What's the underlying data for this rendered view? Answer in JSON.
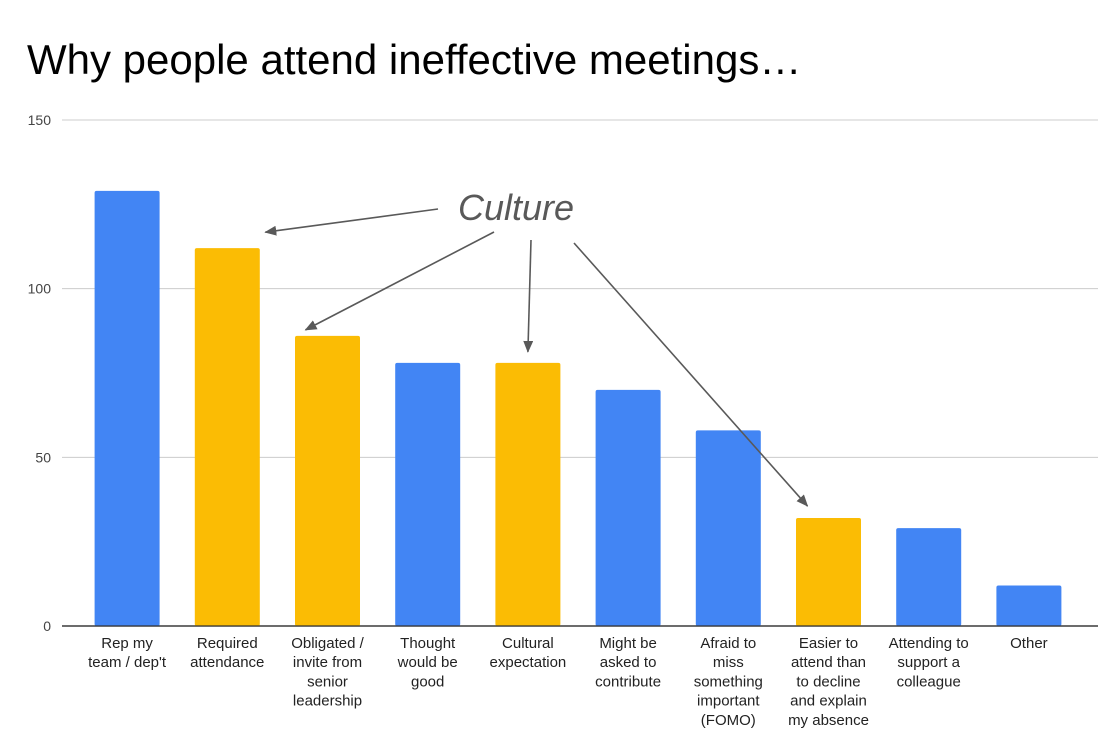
{
  "chart_data": {
    "type": "bar",
    "title": "Why people attend ineffective meetings…",
    "categories": [
      [
        "Rep my",
        "team / dep't"
      ],
      [
        "Required",
        "attendance"
      ],
      [
        "Obligated /",
        "invite from",
        "senior",
        "leadership"
      ],
      [
        "Thought",
        "would be",
        "good"
      ],
      [
        "Cultural",
        "expectation"
      ],
      [
        "Might be",
        "asked to",
        "contribute"
      ],
      [
        "Afraid to",
        "miss",
        "something",
        "important",
        "(FOMO)"
      ],
      [
        "Easier to",
        "attend than",
        "to decline",
        "and explain",
        "my absence"
      ],
      [
        "Attending to",
        "support a",
        "colleague"
      ],
      [
        "Other"
      ]
    ],
    "values": [
      129,
      112,
      86,
      78,
      78,
      70,
      58,
      32,
      29,
      12
    ],
    "groups": [
      "other",
      "culture",
      "culture",
      "other",
      "culture",
      "other",
      "other",
      "culture",
      "other",
      "other"
    ],
    "colors": {
      "other": "#4285f4",
      "culture": "#fbbc04"
    },
    "ylim": [
      0,
      150
    ],
    "yticks": [
      0,
      50,
      100,
      150
    ],
    "grid": true,
    "xlabel": "",
    "ylabel": "",
    "annotation": {
      "text": "Culture",
      "color": "#595959",
      "targets": [
        1,
        2,
        4,
        7
      ]
    }
  }
}
